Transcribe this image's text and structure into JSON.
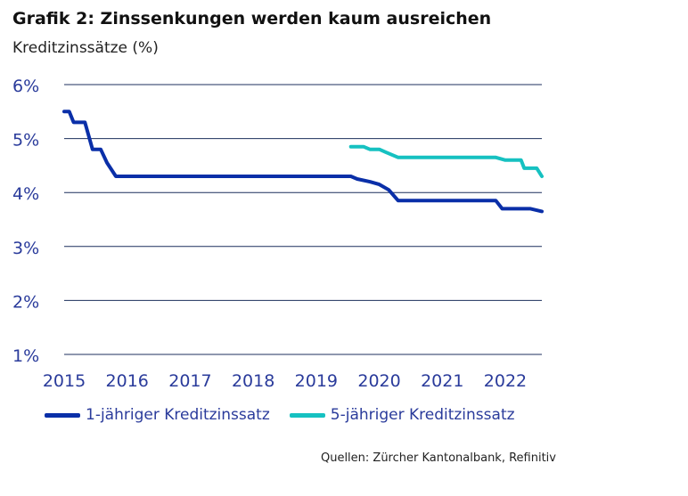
{
  "title": "Grafik 2: Zinssenkungen werden kaum ausreichen",
  "subtitle": "Kreditzinssätze (%)",
  "source": "Quellen: Zürcher Kantonalbank, Refinitiv",
  "colors": {
    "series1": "#0a2fa8",
    "series2": "#16c1c1",
    "grid": "#1c2f5c",
    "ticks": "#2a3b9b"
  },
  "chart_data": {
    "type": "line",
    "title": "Grafik 2: Zinssenkungen werden kaum ausreichen",
    "ylabel": "Kreditzinssätze (%)",
    "xlim": [
      2015,
      2022.58
    ],
    "ylim": [
      1,
      6
    ],
    "grid": true,
    "legend": "bottom",
    "y_ticks": [
      1,
      2,
      3,
      4,
      5,
      6
    ],
    "y_tick_labels": [
      "1%",
      "2%",
      "3%",
      "4%",
      "5%",
      "6%"
    ],
    "x_ticks": [
      2015,
      2016,
      2017,
      2018,
      2019,
      2020,
      2021,
      2022
    ],
    "x_tick_labels": [
      "2015",
      "2016",
      "2017",
      "2018",
      "2019",
      "2020",
      "2021",
      "2022"
    ],
    "series": [
      {
        "name": "1-jähriger Kreditzinssatz",
        "x": [
          2015.0,
          2015.08,
          2015.15,
          2015.33,
          2015.45,
          2015.58,
          2015.68,
          2015.82,
          2019.55,
          2019.65,
          2019.85,
          2020.0,
          2020.15,
          2020.3,
          2021.85,
          2021.95,
          2022.4,
          2022.58
        ],
        "y": [
          5.5,
          5.5,
          5.3,
          5.3,
          4.8,
          4.8,
          4.55,
          4.3,
          4.3,
          4.25,
          4.2,
          4.15,
          4.05,
          3.85,
          3.85,
          3.7,
          3.7,
          3.65
        ]
      },
      {
        "name": "5-jähriger Kreditzinssatz",
        "x": [
          2019.55,
          2019.75,
          2019.85,
          2020.0,
          2020.1,
          2020.2,
          2020.3,
          2021.85,
          2022.0,
          2022.25,
          2022.3,
          2022.5,
          2022.58
        ],
        "y": [
          4.85,
          4.85,
          4.8,
          4.8,
          4.75,
          4.7,
          4.65,
          4.65,
          4.6,
          4.6,
          4.45,
          4.45,
          4.3
        ]
      }
    ]
  }
}
